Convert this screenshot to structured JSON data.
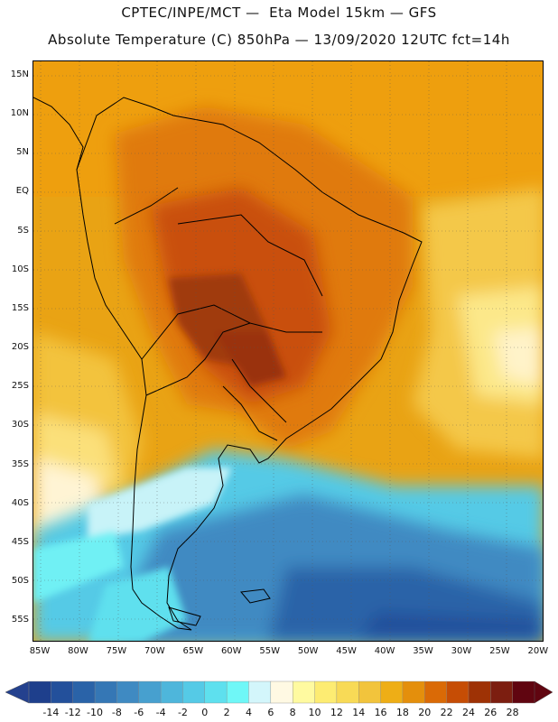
{
  "title": {
    "line1": "CPTEC/INPE/MCT —  Eta Model 15km — GFS",
    "line2": "Absolute Temperature (C) 850hPa — 13/09/2020 12UTC fct=14h"
  },
  "map": {
    "lat_labels": [
      "15N",
      "10N",
      "5N",
      "EQ",
      "5S",
      "10S",
      "15S",
      "20S",
      "25S",
      "30S",
      "35S",
      "40S",
      "45S",
      "50S",
      "55S"
    ],
    "lon_labels": [
      "85W",
      "80W",
      "75W",
      "70W",
      "65W",
      "60W",
      "55W",
      "50W",
      "45W",
      "40W",
      "35W",
      "30W",
      "25W",
      "20W"
    ],
    "lat_values": [
      15,
      10,
      5,
      0,
      -5,
      -10,
      -15,
      -20,
      -25,
      -30,
      -35,
      -40,
      -45,
      -50,
      -55
    ],
    "lon_values": [
      -85,
      -80,
      -75,
      -70,
      -65,
      -60,
      -55,
      -50,
      -45,
      -40,
      -35,
      -30,
      -25,
      -20
    ]
  },
  "colorbar": {
    "labels": [
      "-14",
      "-12",
      "-10",
      "-8",
      "-6",
      "-4",
      "-2",
      "0",
      "2",
      "4",
      "6",
      "8",
      "10",
      "12",
      "14",
      "16",
      "18",
      "20",
      "22",
      "24",
      "26",
      "28"
    ],
    "colors": [
      "#1e3f8c",
      "#23509b",
      "#2a63a8",
      "#3577b5",
      "#3f8ac2",
      "#47a0cf",
      "#4eb6db",
      "#55cae6",
      "#5ee0ee",
      "#6ff7f7",
      "#d3f6fb",
      "#fff9e3",
      "#fffaa0",
      "#fdec72",
      "#f8da56",
      "#f2c43c",
      "#eeae16",
      "#e48f0c",
      "#da6a06",
      "#c64d05",
      "#9e3205",
      "#7c1e10",
      "#600510"
    ],
    "left_arrow_color": "#24418e",
    "right_arrow_color": "#600510"
  }
}
